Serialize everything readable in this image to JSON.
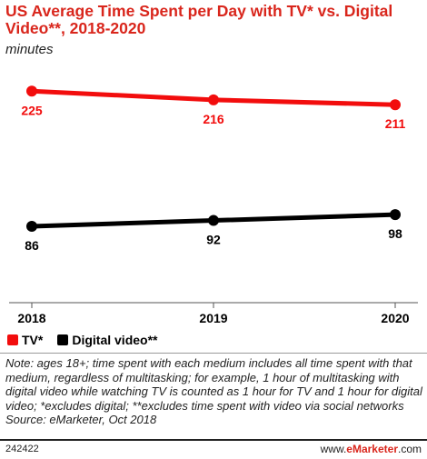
{
  "title": "US Average Time Spent per Day with TV* vs. Digital Video**, 2018-2020",
  "subtitle": "minutes",
  "chart_data": {
    "type": "line",
    "x": [
      "2018",
      "2019",
      "2020"
    ],
    "series": [
      {
        "name": "TV*",
        "values": [
          225,
          216,
          211
        ],
        "color": "#f20d0d"
      },
      {
        "name": "Digital video**",
        "values": [
          86,
          92,
          98
        ],
        "color": "#000000"
      }
    ],
    "legend_position": "bottom-left",
    "grid": false
  },
  "note": "Note: ages 18+; time spent with each medium includes all time spent with that medium, regardless of multitasking; for example, 1 hour of multitasking with digital video while watching TV is counted as 1 hour for TV and 1 hour for digital video; *excludes digital; **excludes time spent with video via social networks",
  "source": "Source: eMarketer, Oct 2018",
  "footer": {
    "id": "242422",
    "brand_prefix": "www.",
    "brand_name": "eMarketer",
    "brand_suffix": ".com"
  }
}
